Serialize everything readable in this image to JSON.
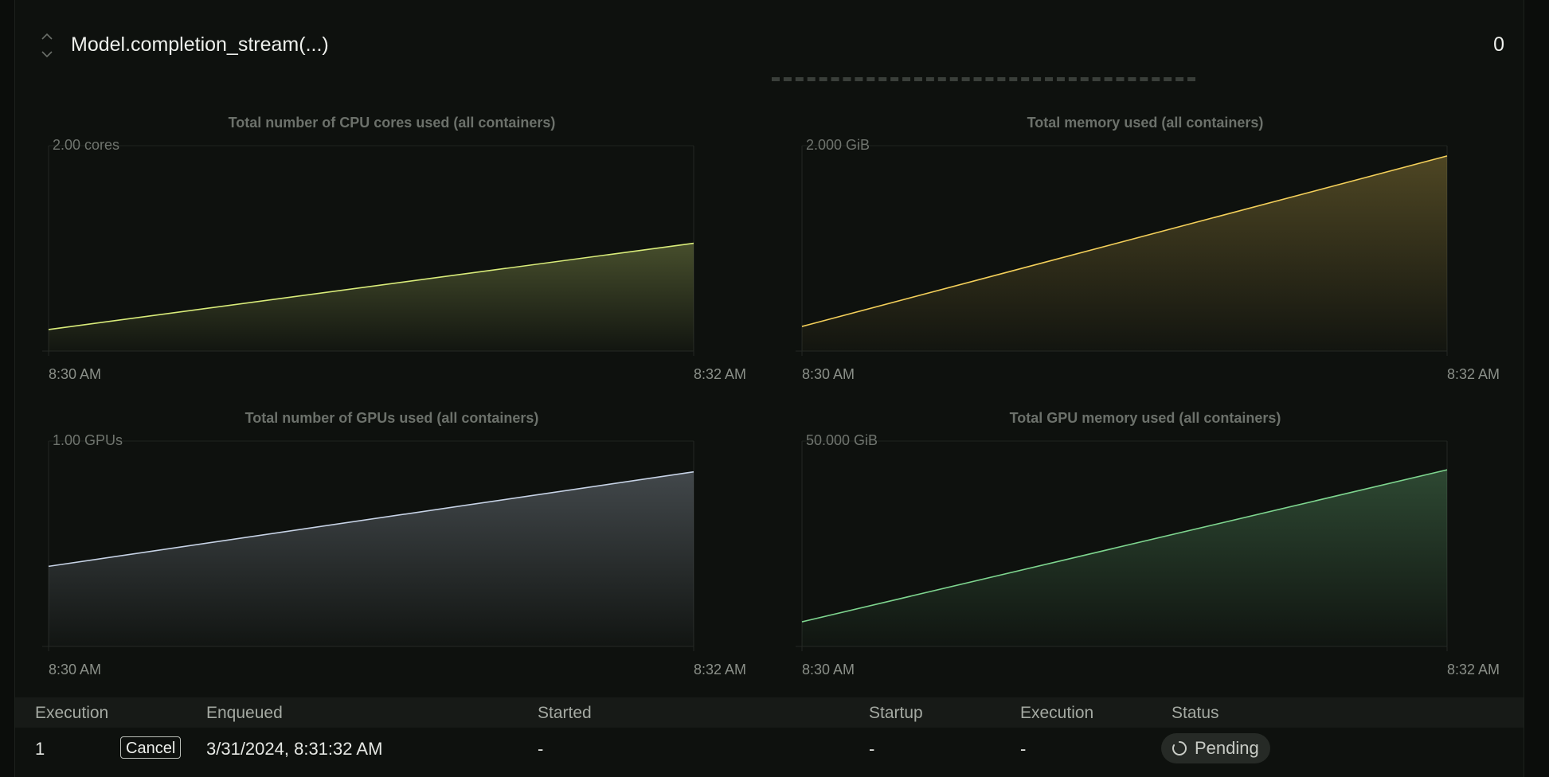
{
  "header": {
    "function_name": "Model.completion_stream(...)",
    "count": "0"
  },
  "charts": [
    {
      "title": "Total number of CPU cores used (all containers)",
      "y_label": "2.00 cores",
      "x_start": "8:30 AM",
      "x_end": "8:32 AM",
      "color": "#d9ec7a"
    },
    {
      "title": "Total memory used (all containers)",
      "y_label": "2.000 GiB",
      "x_start": "8:30 AM",
      "x_end": "8:32 AM",
      "color": "#f3cf5a"
    },
    {
      "title": "Total number of GPUs used (all containers)",
      "y_label": "1.00 GPUs",
      "x_start": "8:30 AM",
      "x_end": "8:32 AM",
      "color": "#c7d3e6"
    },
    {
      "title": "Total GPU memory used (all containers)",
      "y_label": "50.000 GiB",
      "x_start": "8:30 AM",
      "x_end": "8:32 AM",
      "color": "#7ed58f"
    }
  ],
  "chart_data": [
    {
      "type": "area",
      "title": "Total number of CPU cores used (all containers)",
      "x": [
        "8:30 AM",
        "8:32 AM"
      ],
      "series": [
        {
          "values": [
            0.21,
            1.05
          ]
        }
      ],
      "ylim": [
        0,
        2.0
      ],
      "unit": "cores"
    },
    {
      "type": "area",
      "title": "Total memory used (all containers)",
      "x": [
        "8:30 AM",
        "8:32 AM"
      ],
      "series": [
        {
          "values": [
            0.24,
            1.9
          ]
        }
      ],
      "ylim": [
        0,
        2.0
      ],
      "unit": "GiB"
    },
    {
      "type": "area",
      "title": "Total number of GPUs used (all containers)",
      "x": [
        "8:30 AM",
        "8:32 AM"
      ],
      "series": [
        {
          "values": [
            0.39,
            0.85
          ]
        }
      ],
      "ylim": [
        0,
        1.0
      ],
      "unit": "GPUs"
    },
    {
      "type": "area",
      "title": "Total GPU memory used (all containers)",
      "x": [
        "8:30 AM",
        "8:32 AM"
      ],
      "series": [
        {
          "values": [
            6.0,
            43.0
          ]
        }
      ],
      "ylim": [
        0,
        50.0
      ],
      "unit": "GiB"
    }
  ],
  "table": {
    "headers": {
      "execution": "Execution",
      "enqueued": "Enqueued",
      "started": "Started",
      "startup": "Startup",
      "execution_time": "Execution",
      "status": "Status"
    },
    "row": {
      "index": "1",
      "cancel_label": "Cancel",
      "enqueued": "3/31/2024, 8:31:32 AM",
      "started": "-",
      "startup": "-",
      "execution_time": "-",
      "status": "Pending"
    }
  }
}
